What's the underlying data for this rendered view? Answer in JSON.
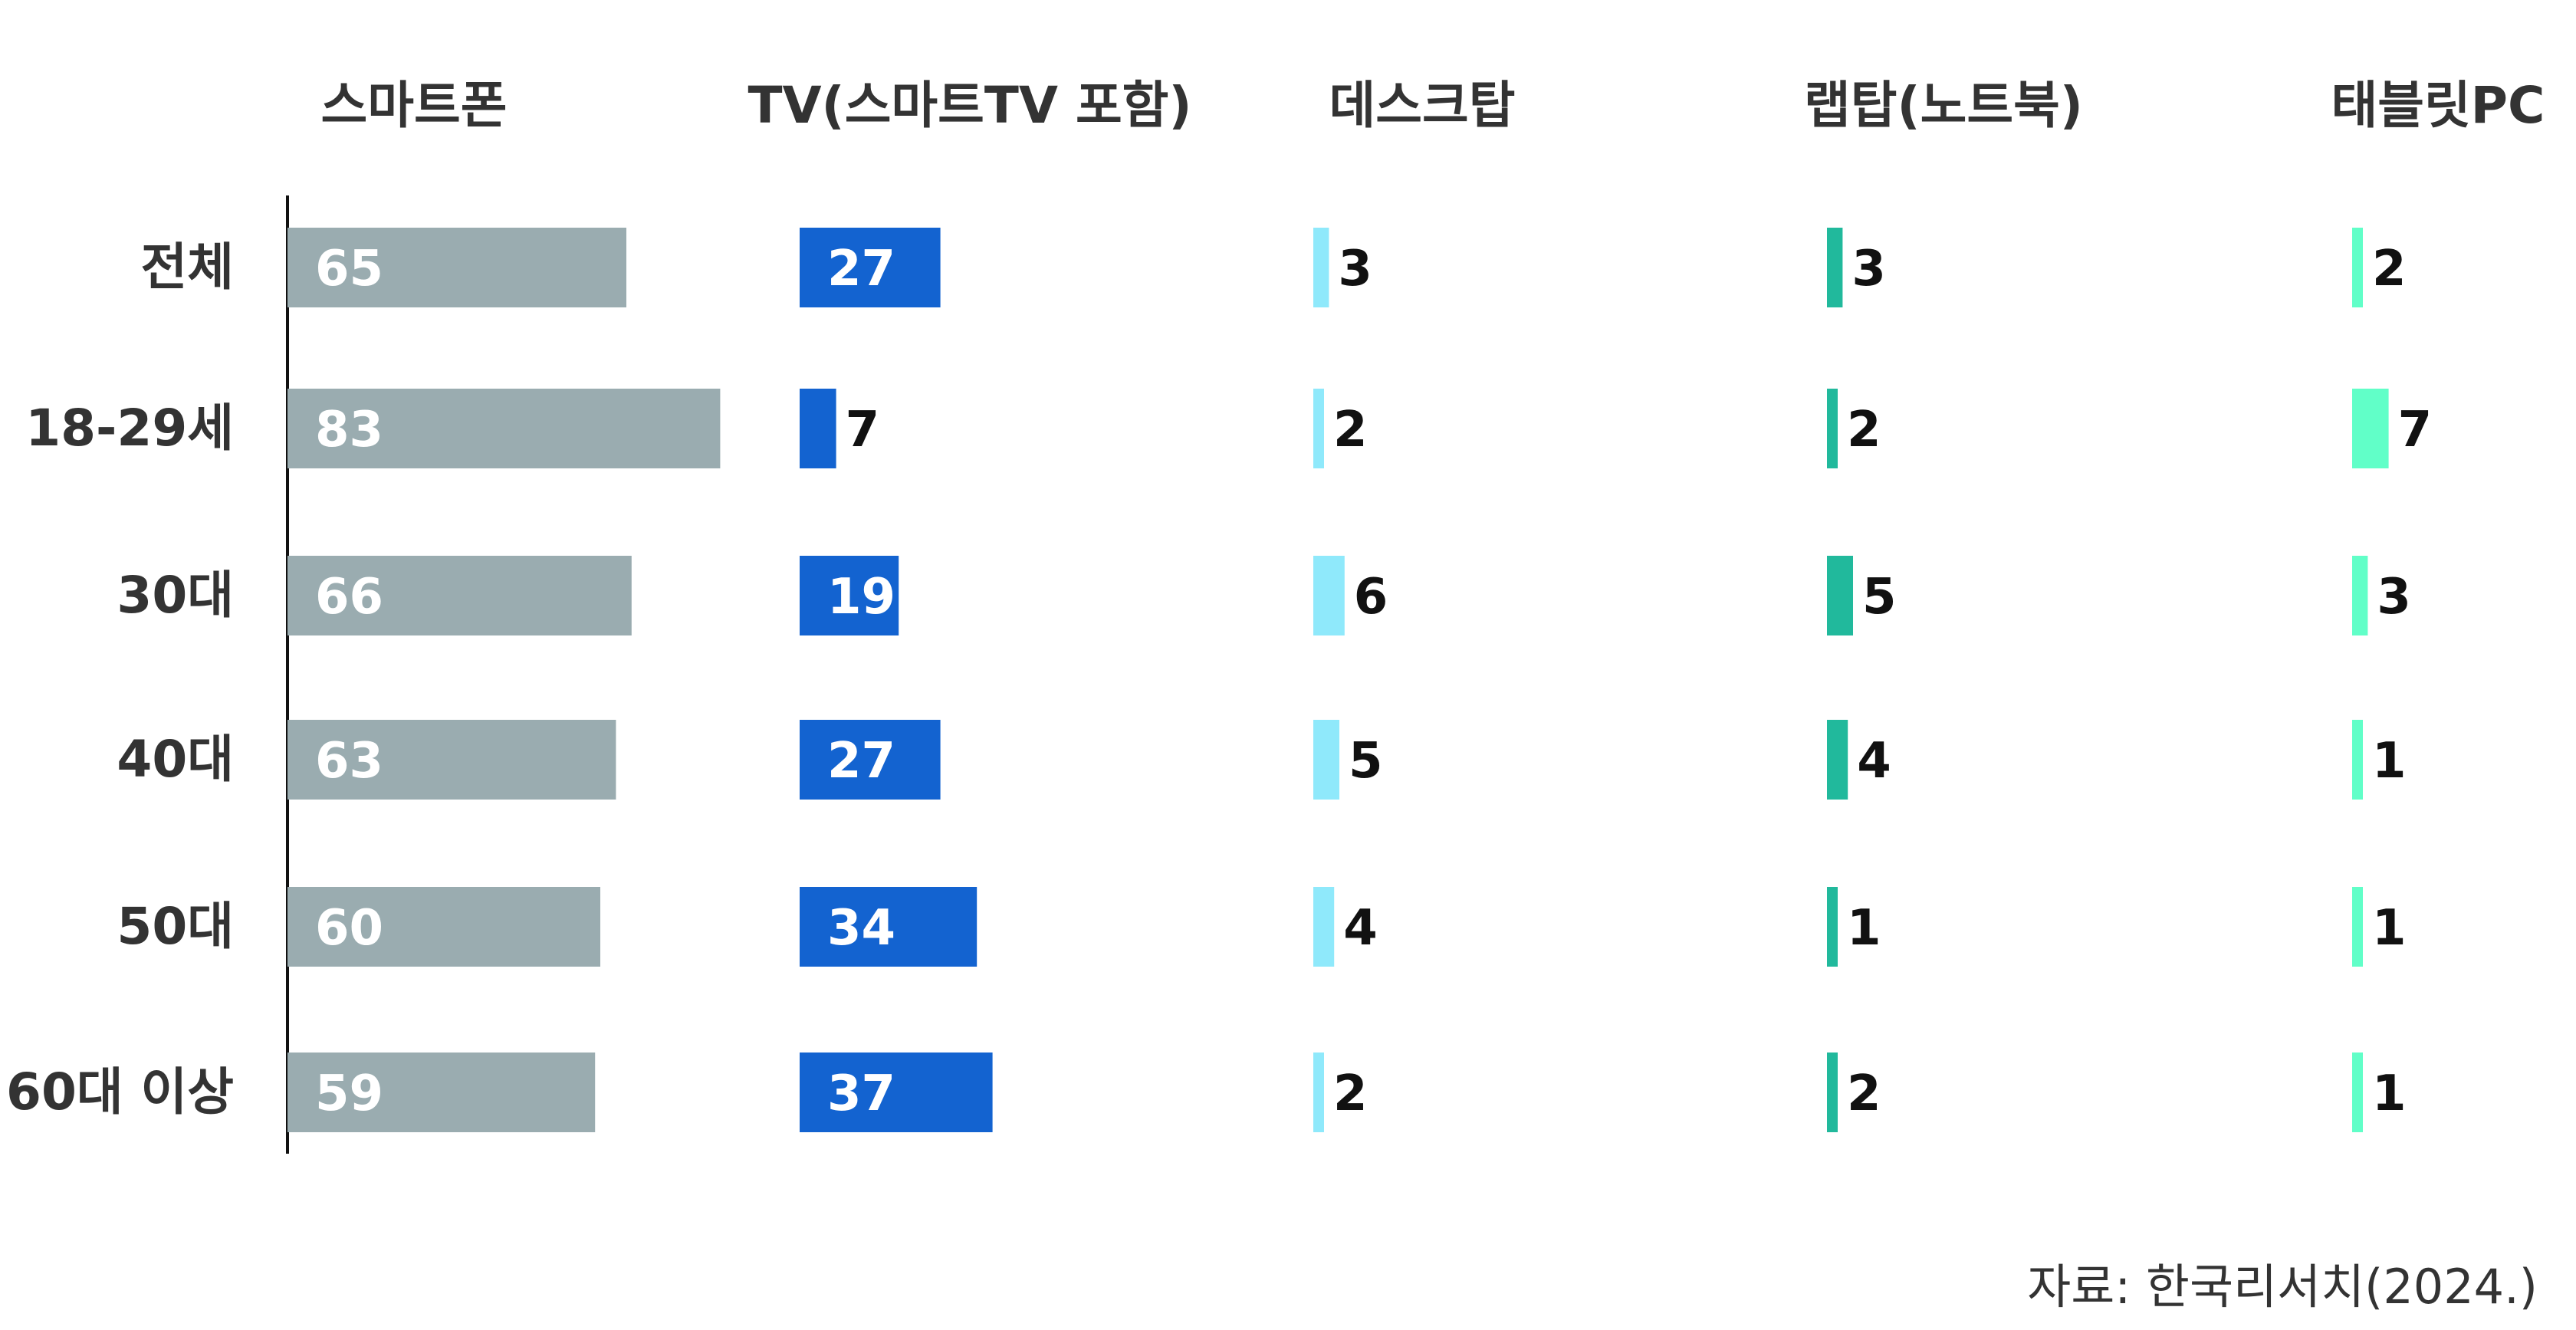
{
  "chart_data": {
    "type": "bar",
    "categories": [
      "전체",
      "18-29세",
      "30대",
      "40대",
      "50대",
      "60대 이상"
    ],
    "series": [
      {
        "name": "스마트폰",
        "color": "#9aacb0",
        "values": [
          65,
          83,
          66,
          63,
          60,
          59
        ]
      },
      {
        "name": "TV(스마트TV 포함)",
        "color": "#1363d0",
        "values": [
          27,
          7,
          19,
          27,
          34,
          37
        ]
      },
      {
        "name": "데스크탑",
        "color": "#8fe9fb",
        "values": [
          3,
          2,
          6,
          5,
          4,
          2
        ]
      },
      {
        "name": "랩탑(노트북)",
        "color": "#21b99c",
        "values": [
          3,
          2,
          5,
          4,
          1,
          2
        ]
      },
      {
        "name": "태블릿PC",
        "color": "#61ffc8",
        "values": [
          2,
          7,
          3,
          1,
          1,
          1
        ]
      }
    ],
    "source": "자료: 한국리서치(2024.)"
  }
}
